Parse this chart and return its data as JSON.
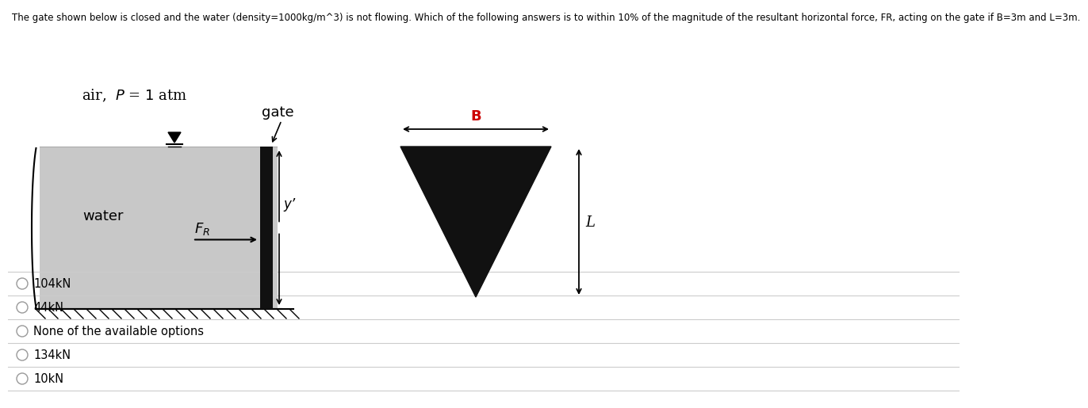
{
  "title": "The gate shown below is closed and the water (density=1000kg/m^3) is not flowing. Which of the following answers is to within 10% of the magnitude of the resultant horizontal force, FR, acting on the gate if B=3m and L=3m.",
  "title_fontsize": 8.5,
  "bg_color": "#ffffff",
  "options": [
    "104kN",
    "44kN",
    "None of the available options",
    "134kN",
    "10kN"
  ],
  "air_label": "air,  P = 1 atm",
  "water_label": "water",
  "gate_label": "gate",
  "y_prime_label": "y’",
  "B_label": "B",
  "L_label": "L",
  "water_color": "#c8c8c8",
  "gate_color": "#111111",
  "triangle_color": "#111111",
  "hatch_color": "#000000",
  "separator_color": "#cccccc",
  "option_circle_color": "#999999",
  "B_label_color": "#cc0000"
}
